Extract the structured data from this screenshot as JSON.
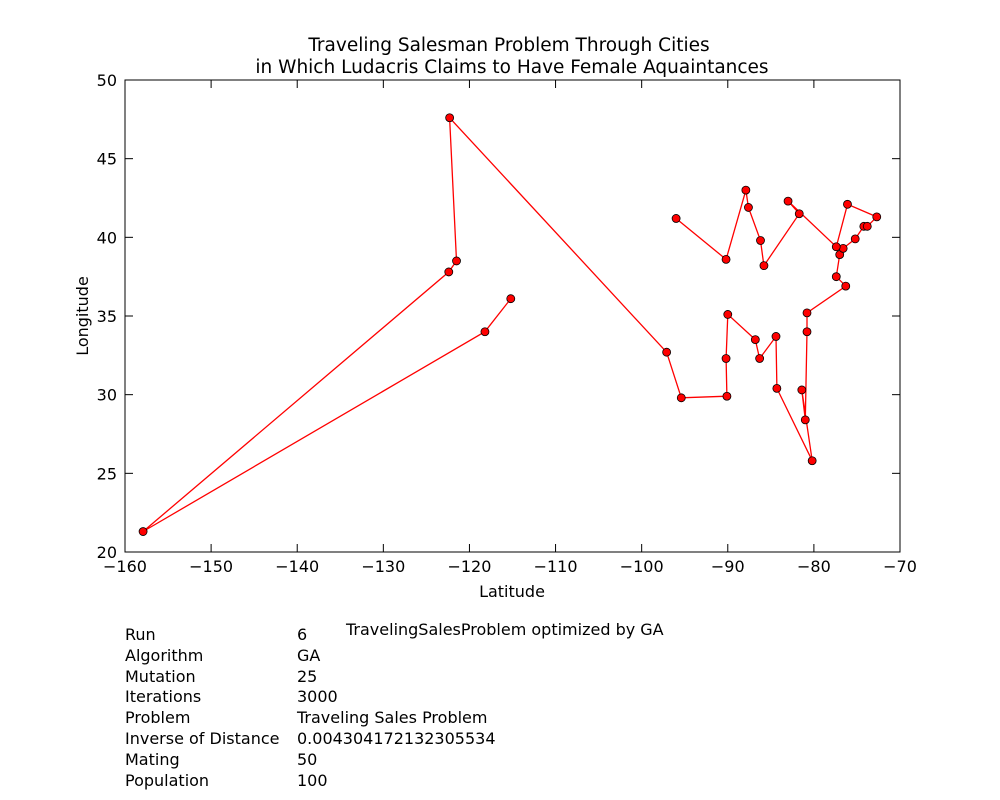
{
  "chart_data": {
    "type": "line",
    "title": [
      "Traveling Salesman Problem Through Cities",
      "in Which Ludacris Claims to Have Female Aquaintances"
    ],
    "xlabel": "Latitude",
    "ylabel": "Longitude",
    "xlim": [
      -160,
      -70
    ],
    "ylim": [
      20,
      50
    ],
    "xticks": [
      -160,
      -150,
      -140,
      -130,
      -120,
      -110,
      -100,
      -90,
      -80,
      -70
    ],
    "yticks": [
      20,
      25,
      30,
      35,
      40,
      45,
      50
    ],
    "xtick_labels": [
      "−160",
      "−150",
      "−140",
      "−130",
      "−120",
      "−110",
      "−100",
      "−90",
      "−80",
      "−70"
    ],
    "ytick_labels": [
      "20",
      "25",
      "30",
      "35",
      "40",
      "45",
      "50"
    ],
    "grid": false,
    "line_color": "#ff0000",
    "marker_color": "#ff0000",
    "marker_edge_color": "#000000",
    "points": [
      {
        "x": -115.2,
        "y": 36.1
      },
      {
        "x": -118.2,
        "y": 34.0
      },
      {
        "x": -157.9,
        "y": 21.3
      },
      {
        "x": -122.4,
        "y": 37.8
      },
      {
        "x": -121.5,
        "y": 38.5
      },
      {
        "x": -122.3,
        "y": 47.6
      },
      {
        "x": -97.1,
        "y": 32.7
      },
      {
        "x": -95.4,
        "y": 29.8
      },
      {
        "x": -90.1,
        "y": 29.9
      },
      {
        "x": -90.2,
        "y": 32.3
      },
      {
        "x": -90.0,
        "y": 35.1
      },
      {
        "x": -86.8,
        "y": 33.5
      },
      {
        "x": -86.3,
        "y": 32.3
      },
      {
        "x": -84.4,
        "y": 33.7
      },
      {
        "x": -84.3,
        "y": 30.4
      },
      {
        "x": -80.2,
        "y": 25.8
      },
      {
        "x": -81.4,
        "y": 30.3
      },
      {
        "x": -81.0,
        "y": 28.4
      },
      {
        "x": -80.8,
        "y": 34.0
      },
      {
        "x": -80.8,
        "y": 35.2
      },
      {
        "x": -76.3,
        "y": 36.9
      },
      {
        "x": -77.4,
        "y": 37.5
      },
      {
        "x": -77.0,
        "y": 38.9
      },
      {
        "x": -76.6,
        "y": 39.3
      },
      {
        "x": -75.2,
        "y": 39.9
      },
      {
        "x": -74.2,
        "y": 40.7
      },
      {
        "x": -73.8,
        "y": 40.7
      },
      {
        "x": -72.7,
        "y": 41.3
      },
      {
        "x": -76.1,
        "y": 42.1
      },
      {
        "x": -77.4,
        "y": 39.4
      },
      {
        "x": -83.0,
        "y": 42.3
      },
      {
        "x": -81.7,
        "y": 41.5
      },
      {
        "x": -85.8,
        "y": 38.2
      },
      {
        "x": -86.2,
        "y": 39.8
      },
      {
        "x": -87.6,
        "y": 41.9
      },
      {
        "x": -87.9,
        "y": 43.0
      },
      {
        "x": -90.2,
        "y": 38.6
      },
      {
        "x": -96.0,
        "y": 41.2
      }
    ]
  },
  "caption": "TravelingSalesProblem optimized by GA",
  "info": [
    {
      "key": "Run",
      "value": "6"
    },
    {
      "key": "Algorithm",
      "value": "GA"
    },
    {
      "key": "Mutation",
      "value": "25"
    },
    {
      "key": "Iterations",
      "value": "3000"
    },
    {
      "key": "Problem",
      "value": "Traveling Sales Problem"
    },
    {
      "key": "Inverse of Distance",
      "value": "0.00430417213230553​4"
    },
    {
      "key": "Mating",
      "value": "50"
    },
    {
      "key": "Population",
      "value": "100"
    }
  ]
}
